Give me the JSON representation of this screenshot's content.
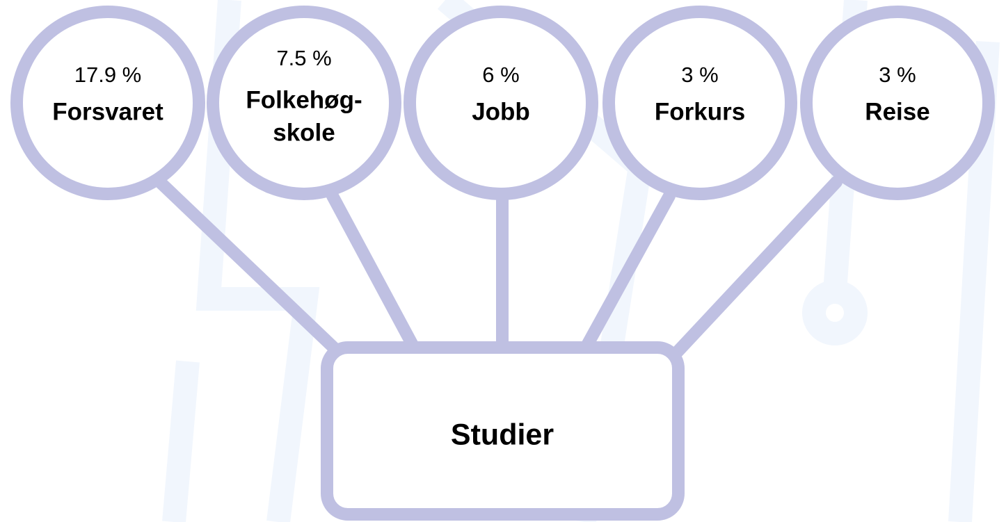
{
  "nodes": [
    {
      "percent": "17.9 %",
      "label": [
        "Forsvaret"
      ]
    },
    {
      "percent": "7.5 %",
      "label": [
        "Folkehøg-",
        "skole"
      ]
    },
    {
      "percent": "6 %",
      "label": [
        "Jobb"
      ]
    },
    {
      "percent": "3 %",
      "label": [
        "Forkurs"
      ]
    },
    {
      "percent": "3 %",
      "label": [
        "Reise"
      ]
    }
  ],
  "center": {
    "label": "Studier"
  }
}
